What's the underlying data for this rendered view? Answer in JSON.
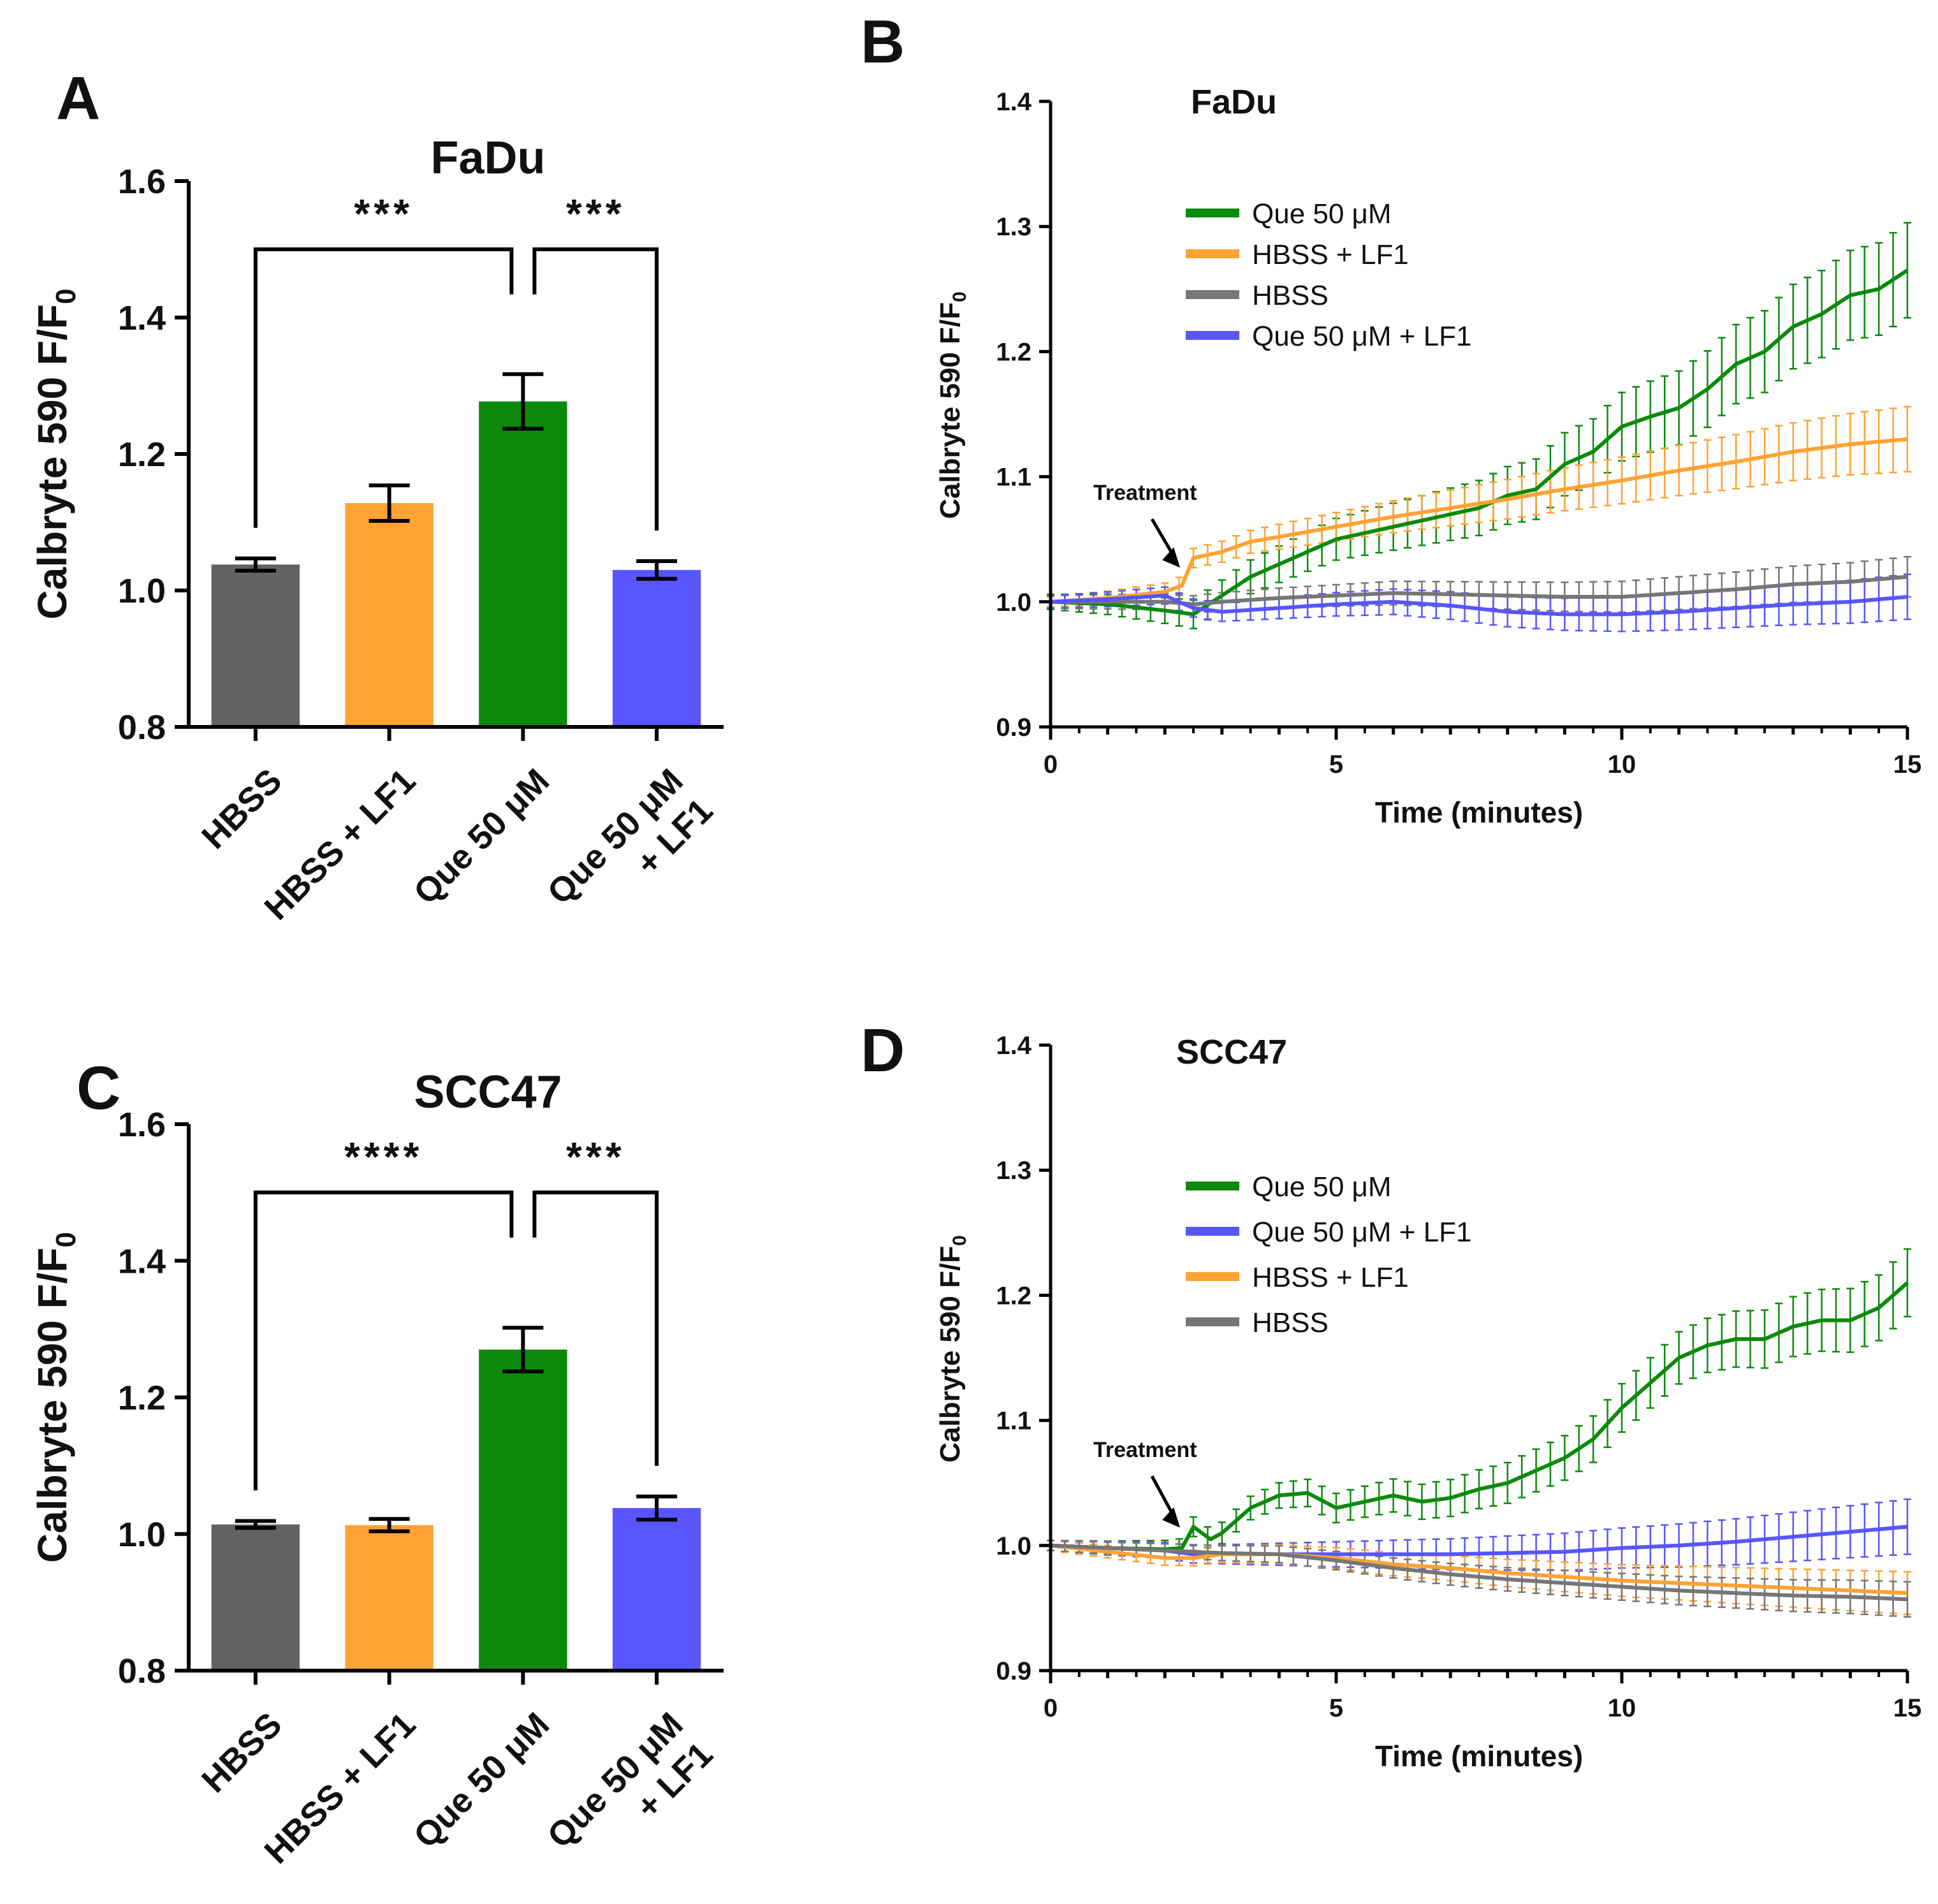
{
  "chart_data": [
    {
      "id": "A",
      "type": "bar",
      "panel_label": "A",
      "title": "FaDu",
      "ylabel_main": "Calbryte 590 F/F",
      "ylabel_sub": "0",
      "ylim": [
        0.8,
        1.6
      ],
      "yticks": [
        0.8,
        1.0,
        1.2,
        1.4,
        1.6
      ],
      "ytick_labels": [
        "0.8",
        "1.0",
        "1.2",
        "1.4",
        "1.6"
      ],
      "categories": [
        {
          "lines": [
            "HBSS"
          ]
        },
        {
          "lines": [
            "HBSS + LF1"
          ]
        },
        {
          "lines": [
            "Que 50 μM"
          ]
        },
        {
          "lines": [
            "Que 50 μM",
            "+ LF1"
          ]
        }
      ],
      "values": [
        1.038,
        1.128,
        1.277,
        1.03
      ],
      "errors": [
        0.009,
        0.026,
        0.04,
        0.013
      ],
      "colors": [
        "#626262",
        "#ffa234",
        "#0b8a0b",
        "#5855ff"
      ],
      "significance": [
        {
          "from": 0,
          "to": 2,
          "label": "***",
          "level": 1.5
        },
        {
          "from": 2,
          "to": 3,
          "label": "***",
          "level": 1.5
        }
      ]
    },
    {
      "id": "B",
      "type": "line",
      "panel_label": "B",
      "title": "FaDu",
      "xlabel": "Time (minutes)",
      "ylabel_main": "Calbryte 590 F/F",
      "ylabel_sub": "0",
      "xlim": [
        0,
        15
      ],
      "ylim": [
        0.9,
        1.4
      ],
      "xticks": [
        0,
        5,
        10,
        15
      ],
      "xtick_labels": [
        "0",
        "5",
        "10",
        "15"
      ],
      "yticks": [
        0.9,
        1.0,
        1.1,
        1.2,
        1.3,
        1.4
      ],
      "ytick_labels": [
        "0.9",
        "1.0",
        "1.1",
        "1.2",
        "1.3",
        "1.4"
      ],
      "annotation": {
        "text": "Treatment",
        "x": 2.2,
        "y": 1.013
      },
      "legend": [
        "Que 50 μM",
        "HBSS + LF1",
        "HBSS",
        "Que 50 μM + LF1"
      ],
      "series": [
        {
          "name": "Que 50 μM",
          "color": "#0b8a0b",
          "points": [
            [
              0,
              1.0
            ],
            [
              1,
              0.998
            ],
            [
              2,
              0.993
            ],
            [
              2.5,
              0.99
            ],
            [
              3,
              1.005
            ],
            [
              3.5,
              1.02
            ],
            [
              4,
              1.03
            ],
            [
              4.5,
              1.04
            ],
            [
              5,
              1.05
            ],
            [
              5.5,
              1.055
            ],
            [
              6,
              1.06
            ],
            [
              6.5,
              1.065
            ],
            [
              7,
              1.07
            ],
            [
              7.5,
              1.075
            ],
            [
              8,
              1.085
            ],
            [
              8.5,
              1.09
            ],
            [
              9,
              1.11
            ],
            [
              9.5,
              1.12
            ],
            [
              10,
              1.14
            ],
            [
              10.5,
              1.148
            ],
            [
              11,
              1.155
            ],
            [
              11.5,
              1.17
            ],
            [
              12,
              1.19
            ],
            [
              12.5,
              1.2
            ],
            [
              13,
              1.22
            ],
            [
              13.5,
              1.23
            ],
            [
              14,
              1.245
            ],
            [
              14.5,
              1.25
            ],
            [
              15,
              1.265
            ]
          ],
          "err_start": 0.006,
          "err_end": 0.038
        },
        {
          "name": "HBSS + LF1",
          "color": "#ffa234",
          "points": [
            [
              0,
              1.0
            ],
            [
              1,
              1.003
            ],
            [
              2,
              1.008
            ],
            [
              2.3,
              1.013
            ],
            [
              2.5,
              1.035
            ],
            [
              3,
              1.04
            ],
            [
              3.5,
              1.048
            ],
            [
              4,
              1.052
            ],
            [
              5,
              1.06
            ],
            [
              6,
              1.068
            ],
            [
              7,
              1.075
            ],
            [
              8,
              1.082
            ],
            [
              9,
              1.09
            ],
            [
              10,
              1.097
            ],
            [
              11,
              1.105
            ],
            [
              12,
              1.112
            ],
            [
              13,
              1.12
            ],
            [
              14,
              1.126
            ],
            [
              15,
              1.13
            ]
          ],
          "err_start": 0.004,
          "err_end": 0.026
        },
        {
          "name": "HBSS",
          "color": "#767676",
          "points": [
            [
              0,
              1.0
            ],
            [
              1,
              1.0
            ],
            [
              2,
              1.0
            ],
            [
              2.5,
              0.998
            ],
            [
              3,
              1.0
            ],
            [
              4,
              1.003
            ],
            [
              5,
              1.005
            ],
            [
              6,
              1.007
            ],
            [
              7,
              1.006
            ],
            [
              8,
              1.005
            ],
            [
              9,
              1.004
            ],
            [
              10,
              1.004
            ],
            [
              11,
              1.007
            ],
            [
              12,
              1.01
            ],
            [
              13,
              1.014
            ],
            [
              14,
              1.016
            ],
            [
              15,
              1.02
            ]
          ],
          "err_start": 0.005,
          "err_end": 0.016
        },
        {
          "name": "Que 50 μM + LF1",
          "color": "#5855ff",
          "points": [
            [
              0,
              1.0
            ],
            [
              1,
              1.002
            ],
            [
              2,
              1.005
            ],
            [
              2.5,
              0.995
            ],
            [
              3,
              0.992
            ],
            [
              4,
              0.995
            ],
            [
              5,
              0.998
            ],
            [
              6,
              1.0
            ],
            [
              7,
              0.997
            ],
            [
              8,
              0.992
            ],
            [
              9,
              0.99
            ],
            [
              10,
              0.99
            ],
            [
              11,
              0.992
            ],
            [
              12,
              0.995
            ],
            [
              13,
              0.998
            ],
            [
              14,
              1.0
            ],
            [
              15,
              1.004
            ]
          ],
          "err_start": 0.005,
          "err_end": 0.018
        }
      ]
    },
    {
      "id": "C",
      "type": "bar",
      "panel_label": "C",
      "title": "SCC47",
      "ylabel_main": "Calbryte 590 F/F",
      "ylabel_sub": "0",
      "ylim": [
        0.8,
        1.6
      ],
      "yticks": [
        0.8,
        1.0,
        1.2,
        1.4,
        1.6
      ],
      "ytick_labels": [
        "0.8",
        "1.0",
        "1.2",
        "1.4",
        "1.6"
      ],
      "categories": [
        {
          "lines": [
            "HBSS"
          ]
        },
        {
          "lines": [
            "HBSS + LF1"
          ]
        },
        {
          "lines": [
            "Que 50 μM"
          ]
        },
        {
          "lines": [
            "Que 50 μM",
            "+ LF1"
          ]
        }
      ],
      "values": [
        1.014,
        1.013,
        1.27,
        1.038
      ],
      "errors": [
        0.005,
        0.009,
        0.032,
        0.017
      ],
      "colors": [
        "#626262",
        "#ffa234",
        "#0b8a0b",
        "#5855ff"
      ],
      "significance": [
        {
          "from": 0,
          "to": 2,
          "label": "****",
          "level": 1.5
        },
        {
          "from": 2,
          "to": 3,
          "label": "***",
          "level": 1.5
        }
      ]
    },
    {
      "id": "D",
      "type": "line",
      "panel_label": "D",
      "title": "SCC47",
      "xlabel": "Time (minutes)",
      "ylabel_main": "Calbryte 590 F/F",
      "ylabel_sub": "0",
      "xlim": [
        0,
        15
      ],
      "ylim": [
        0.9,
        1.4
      ],
      "xticks": [
        0,
        5,
        10,
        15
      ],
      "xtick_labels": [
        "0",
        "5",
        "10",
        "15"
      ],
      "yticks": [
        0.9,
        1.0,
        1.1,
        1.2,
        1.3,
        1.4
      ],
      "ytick_labels": [
        "0.9",
        "1.0",
        "1.1",
        "1.2",
        "1.3",
        "1.4"
      ],
      "annotation": {
        "text": "Treatment",
        "x": 2.2,
        "y": 1.0
      },
      "legend": [
        "Que 50 μM",
        "Que 50 μM + LF1",
        "HBSS + LF1",
        "HBSS"
      ],
      "series": [
        {
          "name": "Que 50 μM",
          "color": "#0b8a0b",
          "points": [
            [
              0,
              1.0
            ],
            [
              1,
              0.998
            ],
            [
              2,
              0.997
            ],
            [
              2.3,
              0.998
            ],
            [
              2.5,
              1.015
            ],
            [
              2.8,
              1.005
            ],
            [
              3,
              1.01
            ],
            [
              3.5,
              1.03
            ],
            [
              4,
              1.04
            ],
            [
              4.5,
              1.042
            ],
            [
              5,
              1.03
            ],
            [
              5.5,
              1.035
            ],
            [
              6,
              1.04
            ],
            [
              6.5,
              1.035
            ],
            [
              7,
              1.038
            ],
            [
              7.5,
              1.045
            ],
            [
              8,
              1.05
            ],
            [
              8.5,
              1.06
            ],
            [
              9,
              1.07
            ],
            [
              9.5,
              1.085
            ],
            [
              10,
              1.11
            ],
            [
              10.5,
              1.13
            ],
            [
              11,
              1.15
            ],
            [
              11.5,
              1.16
            ],
            [
              12,
              1.165
            ],
            [
              12.5,
              1.165
            ],
            [
              13,
              1.175
            ],
            [
              13.5,
              1.18
            ],
            [
              14,
              1.18
            ],
            [
              14.5,
              1.19
            ],
            [
              15,
              1.21
            ]
          ],
          "err_start": 0.004,
          "err_end": 0.027
        },
        {
          "name": "Que 50 μM + LF1",
          "color": "#5855ff",
          "points": [
            [
              0,
              1.0
            ],
            [
              1,
              0.998
            ],
            [
              2,
              0.996
            ],
            [
              2.5,
              0.993
            ],
            [
              3,
              0.993
            ],
            [
              4,
              0.993
            ],
            [
              5,
              0.993
            ],
            [
              6,
              0.993
            ],
            [
              7,
              0.993
            ],
            [
              8,
              0.994
            ],
            [
              9,
              0.995
            ],
            [
              10,
              0.998
            ],
            [
              11,
              1.0
            ],
            [
              12,
              1.003
            ],
            [
              13,
              1.007
            ],
            [
              14,
              1.011
            ],
            [
              15,
              1.015
            ]
          ],
          "err_start": 0.004,
          "err_end": 0.022
        },
        {
          "name": "HBSS + LF1",
          "color": "#ffa234",
          "points": [
            [
              0,
              1.0
            ],
            [
              1,
              0.995
            ],
            [
              2,
              0.99
            ],
            [
              2.5,
              0.99
            ],
            [
              3,
              0.993
            ],
            [
              4,
              0.993
            ],
            [
              5,
              0.99
            ],
            [
              6,
              0.985
            ],
            [
              7,
              0.982
            ],
            [
              8,
              0.978
            ],
            [
              9,
              0.975
            ],
            [
              10,
              0.972
            ],
            [
              11,
              0.97
            ],
            [
              12,
              0.968
            ],
            [
              13,
              0.966
            ],
            [
              14,
              0.964
            ],
            [
              15,
              0.962
            ]
          ],
          "err_start": 0.004,
          "err_end": 0.017
        },
        {
          "name": "HBSS",
          "color": "#767676",
          "points": [
            [
              0,
              1.0
            ],
            [
              1,
              0.998
            ],
            [
              2,
              0.996
            ],
            [
              2.5,
              0.995
            ],
            [
              3,
              0.994
            ],
            [
              4,
              0.993
            ],
            [
              5,
              0.988
            ],
            [
              6,
              0.982
            ],
            [
              7,
              0.977
            ],
            [
              8,
              0.973
            ],
            [
              9,
              0.97
            ],
            [
              10,
              0.967
            ],
            [
              11,
              0.964
            ],
            [
              12,
              0.962
            ],
            [
              13,
              0.96
            ],
            [
              14,
              0.959
            ],
            [
              15,
              0.957
            ]
          ],
          "err_start": 0.004,
          "err_end": 0.014
        }
      ]
    }
  ]
}
